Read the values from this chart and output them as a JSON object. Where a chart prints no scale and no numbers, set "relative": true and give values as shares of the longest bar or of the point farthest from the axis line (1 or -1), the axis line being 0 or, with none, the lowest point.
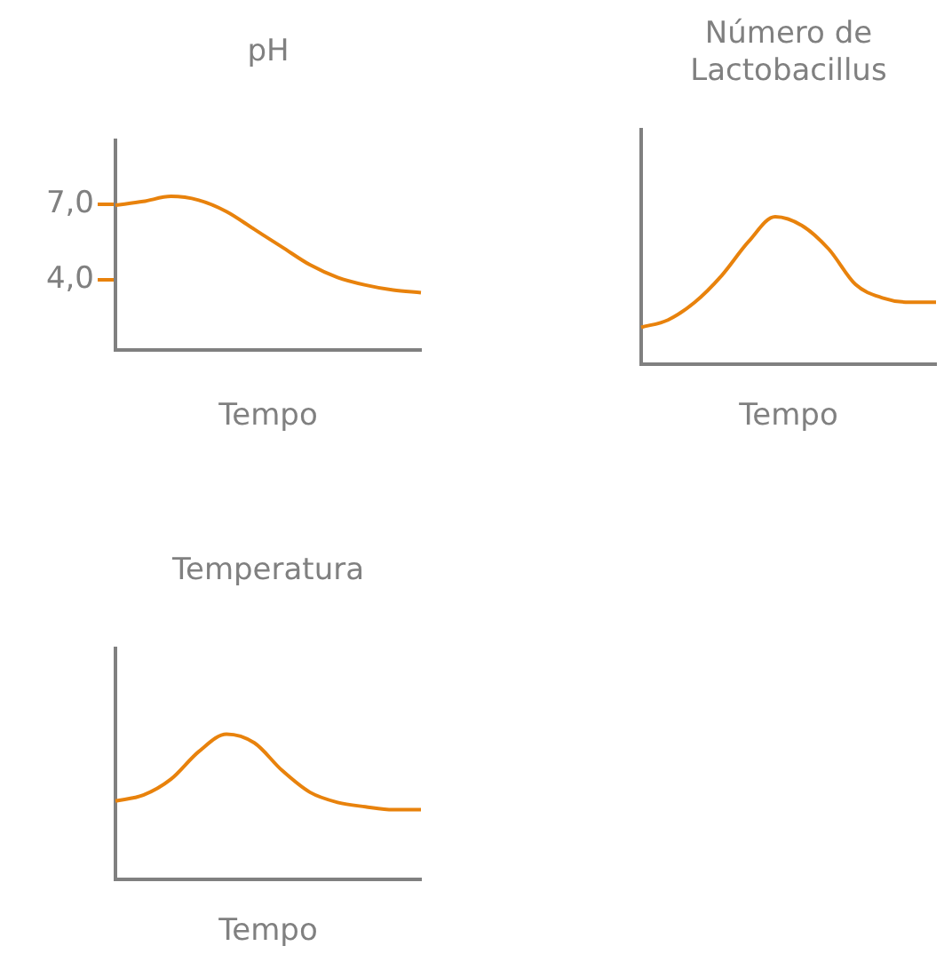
{
  "chart_data": [
    {
      "type": "line",
      "title": "pH",
      "xlabel": "Tempo",
      "categories": [
        null,
        null,
        null,
        null,
        null,
        null,
        null,
        null,
        null,
        null,
        null,
        null
      ],
      "values": [
        6.95,
        7.1,
        7.3,
        7.15,
        6.7,
        6.0,
        5.3,
        4.6,
        4.1,
        3.8,
        3.6,
        3.5
      ],
      "color": "#e8820c",
      "ylim": [
        1.25,
        9.5
      ],
      "yticks": [
        {
          "value": 7,
          "label": "7,0"
        },
        {
          "value": 4,
          "label": "4,0"
        }
      ],
      "tick_labels": "y",
      "grid": false,
      "legend": false,
      "marker": "none"
    },
    {
      "type": "line",
      "title": "Número de Lactobacillus",
      "xlabel": "Tempo",
      "relative": true,
      "categories": [
        null,
        null,
        null,
        null,
        null,
        null,
        null,
        null,
        null,
        null,
        null,
        null
      ],
      "values": [
        0.25,
        0.3,
        0.42,
        0.6,
        0.83,
        1.0,
        0.94,
        0.78,
        0.54,
        0.45,
        0.42,
        0.42
      ],
      "color": "#e8820c",
      "tick_labels": false,
      "grid": false,
      "legend": false,
      "marker": "none"
    },
    {
      "type": "line",
      "title": "Temperatura",
      "xlabel": "Tempo",
      "relative": true,
      "categories": [
        null,
        null,
        null,
        null,
        null,
        null,
        null,
        null,
        null,
        null,
        null,
        null
      ],
      "values": [
        0.54,
        0.58,
        0.69,
        0.88,
        1.0,
        0.94,
        0.75,
        0.6,
        0.53,
        0.5,
        0.48,
        0.48
      ],
      "color": "#e8820c",
      "tick_labels": false,
      "grid": false,
      "legend": false,
      "marker": "none"
    }
  ]
}
